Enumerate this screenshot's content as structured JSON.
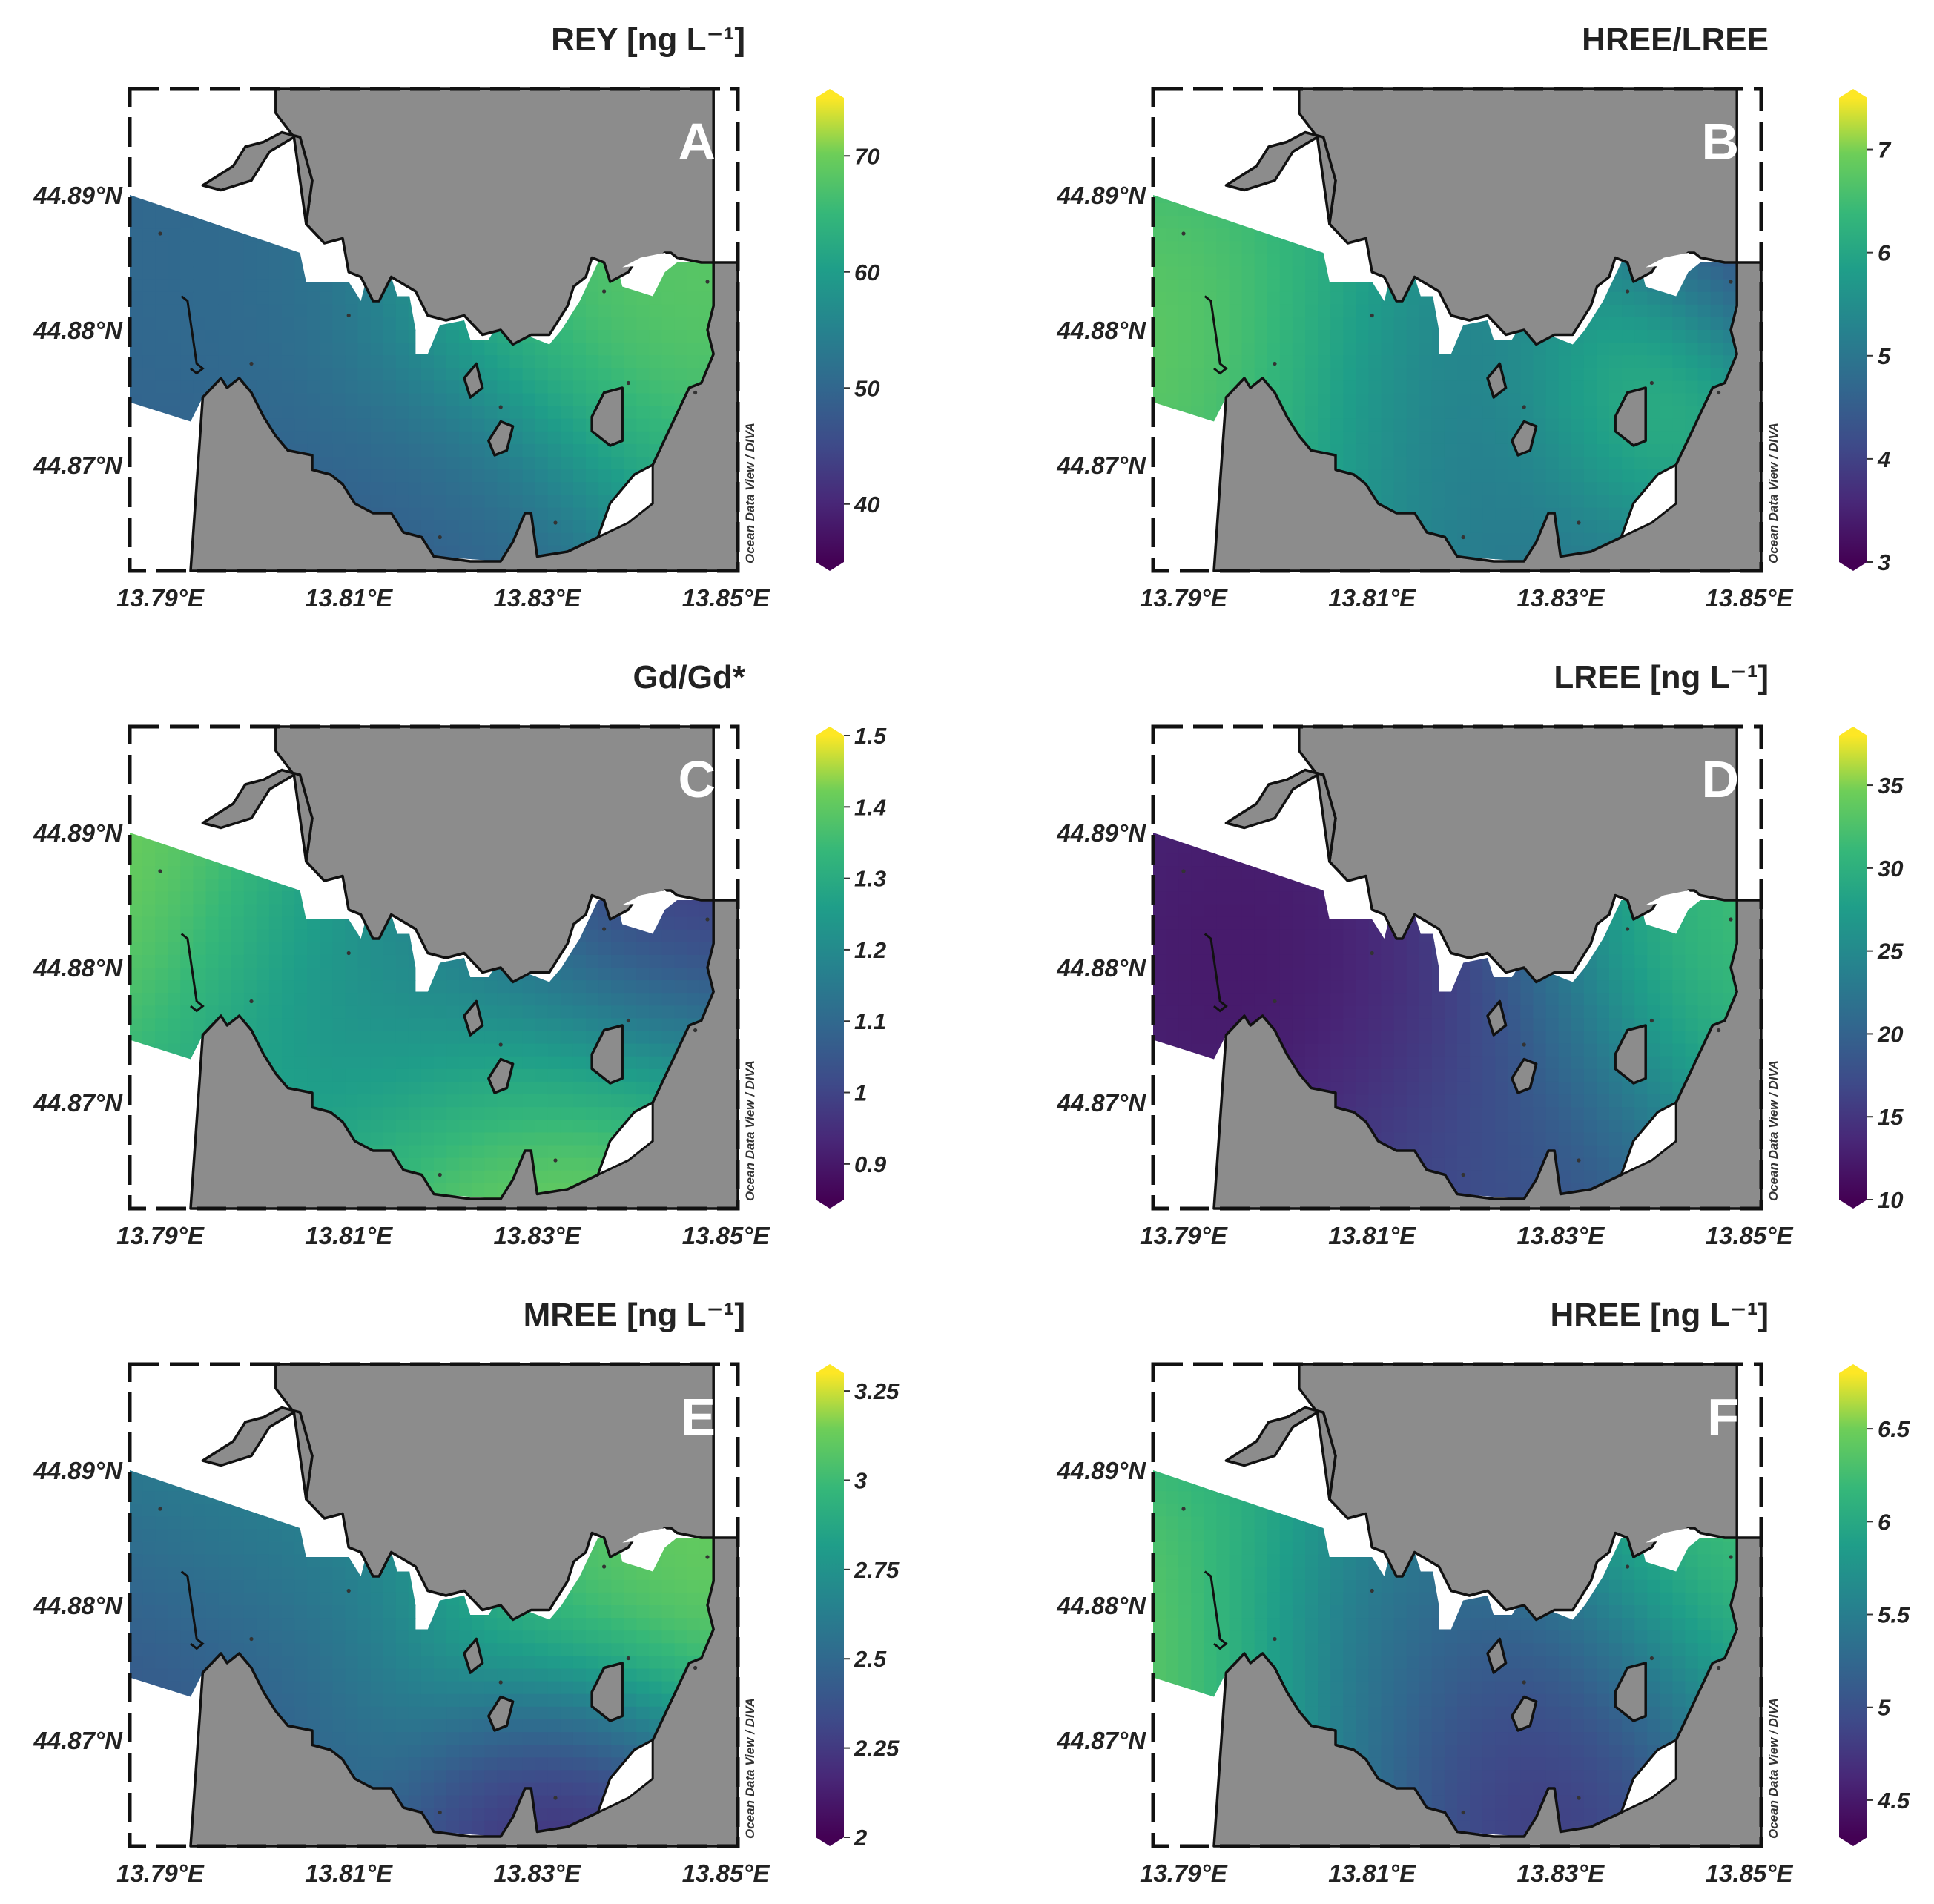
{
  "figure": {
    "panels": [
      {
        "letter": "A",
        "title": "REY [ng L⁻¹]",
        "colorbar": {
          "ticks": [
            "70",
            "60",
            "50",
            "40"
          ],
          "min": 35,
          "max": 75
        },
        "field": {
          "bg": 0.3,
          "blobs": [
            {
              "v": 1.0,
              "r": 0.42,
              "cx": 0.94,
              "cy": 0.38
            },
            {
              "v": 0.4,
              "r": 0.3,
              "cx": 0.05,
              "cy": 0.35
            },
            {
              "v": 0.32,
              "r": 0.25,
              "cx": 0.5,
              "cy": 0.95
            }
          ]
        }
      },
      {
        "letter": "B",
        "title": "HREE/LREE",
        "colorbar": {
          "ticks": [
            "7",
            "6",
            "5",
            "4",
            "3"
          ],
          "min": 3,
          "max": 7.5
        },
        "field": {
          "bg": 0.42,
          "blobs": [
            {
              "v": 0.98,
              "r": 0.42,
              "cx": 0.0,
              "cy": 0.55
            },
            {
              "v": 0.97,
              "r": 0.2,
              "cx": 0.82,
              "cy": 0.6
            },
            {
              "v": 0.15,
              "r": 0.2,
              "cx": 0.98,
              "cy": 0.37
            },
            {
              "v": 0.4,
              "r": 0.3,
              "cx": 0.55,
              "cy": 0.65
            }
          ]
        }
      },
      {
        "letter": "C",
        "title": "Gd/Gd*",
        "colorbar": {
          "ticks": [
            "1.5",
            "1.4",
            "1.3",
            "1.2",
            "1.1",
            "1",
            "0.9"
          ],
          "min": 0.85,
          "max": 1.5
        },
        "field": {
          "bg": 0.55,
          "blobs": [
            {
              "v": 1.0,
              "r": 0.35,
              "cx": 0.0,
              "cy": 0.3
            },
            {
              "v": 1.0,
              "r": 0.35,
              "cx": 0.72,
              "cy": 0.95
            },
            {
              "v": 0.05,
              "r": 0.3,
              "cx": 0.88,
              "cy": 0.38
            },
            {
              "v": 0.45,
              "r": 0.3,
              "cx": 0.4,
              "cy": 0.5
            }
          ]
        }
      },
      {
        "letter": "D",
        "title": "LREE [ng L⁻¹]",
        "colorbar": {
          "ticks": [
            "35",
            "30",
            "25",
            "20",
            "15",
            "10"
          ],
          "min": 10,
          "max": 38
        },
        "field": {
          "bg": 0.15,
          "blobs": [
            {
              "v": 1.0,
              "r": 0.4,
              "cx": 0.97,
              "cy": 0.38
            },
            {
              "v": 0.03,
              "r": 0.35,
              "cx": 0.35,
              "cy": 0.5
            },
            {
              "v": 0.3,
              "r": 0.25,
              "cx": 0.55,
              "cy": 0.92
            }
          ]
        }
      },
      {
        "letter": "E",
        "title": "MREE [ng L⁻¹]",
        "colorbar": {
          "ticks": [
            "3.25",
            "3",
            "2.75",
            "2.5",
            "2.25",
            "2"
          ],
          "min": 2,
          "max": 3.3
        },
        "field": {
          "bg": 0.4,
          "blobs": [
            {
              "v": 1.0,
              "r": 0.4,
              "cx": 0.97,
              "cy": 0.38
            },
            {
              "v": 0.0,
              "r": 0.22,
              "cx": 0.75,
              "cy": 0.95
            },
            {
              "v": 0.25,
              "r": 0.3,
              "cx": 0.0,
              "cy": 0.6
            },
            {
              "v": 0.55,
              "r": 0.3,
              "cx": 0.15,
              "cy": 0.25
            }
          ]
        }
      },
      {
        "letter": "F",
        "title": "HREE [ng L⁻¹]",
        "colorbar": {
          "ticks": [
            "6.5",
            "6",
            "5.5",
            "5",
            "4.5"
          ],
          "min": 4.3,
          "max": 6.8
        },
        "field": {
          "bg": 0.4,
          "blobs": [
            {
              "v": 1.0,
              "r": 0.4,
              "cx": 0.0,
              "cy": 0.6
            },
            {
              "v": 0.95,
              "r": 0.35,
              "cx": 0.95,
              "cy": 0.4
            },
            {
              "v": 0.0,
              "r": 0.3,
              "cx": 0.62,
              "cy": 0.75
            },
            {
              "v": 0.35,
              "r": 0.25,
              "cx": 0.4,
              "cy": 0.55
            }
          ]
        }
      }
    ],
    "x_ticks": [
      "13.79°E",
      "13.81°E",
      "13.83°E",
      "13.85°E"
    ],
    "y_ticks": [
      "44.89°N",
      "44.88°N",
      "44.87°N"
    ],
    "credit": "Ocean Data View / DIVA",
    "colors": {
      "land": "#8c8c8c",
      "coast": "#111111",
      "background": "#ffffff"
    }
  }
}
